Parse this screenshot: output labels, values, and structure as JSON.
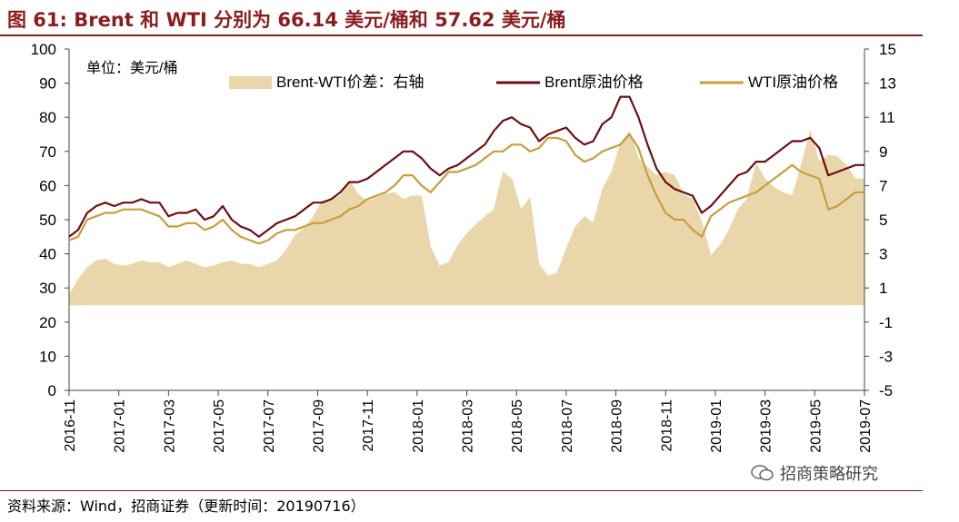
{
  "header": {
    "title": "图 61:  Brent 和 WTI 分别为 66.14 美元/桶和 57.62 美元/桶"
  },
  "footer": {
    "source": "资料来源：Wind，招商证券（更新时间：20190716）"
  },
  "watermark": {
    "text": "招商策略研究"
  },
  "colors": {
    "spread": "#e9d7ab",
    "brent": "#6b0f14",
    "wti": "#c79e3c",
    "title": "#8a1d1d"
  },
  "chart_data": {
    "type": "line",
    "unit_label": "单位：美元/桶",
    "left_axis": {
      "min": 0,
      "max": 100,
      "ticks": [
        0,
        10,
        20,
        30,
        40,
        50,
        60,
        70,
        80,
        90,
        100
      ]
    },
    "right_axis": {
      "min": -5,
      "max": 15,
      "ticks": [
        -5,
        -3,
        -1,
        1,
        3,
        5,
        7,
        9,
        11,
        13,
        15
      ]
    },
    "x_ticks": [
      "2016-11",
      "2017-01",
      "2017-03",
      "2017-05",
      "2017-07",
      "2017-09",
      "2017-11",
      "2018-01",
      "2018-03",
      "2018-05",
      "2018-07",
      "2018-09",
      "2018-11",
      "2019-01",
      "2019-03",
      "2019-05",
      "2019-07"
    ],
    "legend": [
      "Brent-WTI价差：右轴",
      "Brent原油价格",
      "WTI原油价格"
    ],
    "series": [
      {
        "name": "Brent原油价格",
        "axis": "left",
        "type": "line",
        "values": [
          45,
          47,
          52,
          54,
          55,
          54,
          55,
          55,
          56,
          55,
          55,
          51,
          52,
          52,
          53,
          50,
          51,
          54,
          50,
          48,
          47,
          45,
          47,
          49,
          50,
          51,
          53,
          55,
          55,
          56,
          58,
          61,
          61,
          62,
          64,
          66,
          68,
          70,
          70,
          68,
          65,
          63,
          65,
          66,
          68,
          70,
          72,
          76,
          79,
          80,
          78,
          77,
          73,
          75,
          76,
          77,
          74,
          72,
          73,
          78,
          80,
          86,
          86,
          80,
          72,
          65,
          61,
          59,
          58,
          57,
          52,
          54,
          57,
          60,
          63,
          64,
          67,
          67,
          69,
          71,
          73,
          73,
          74,
          71,
          63,
          64,
          65,
          66,
          66
        ]
      },
      {
        "name": "WTI原油价格",
        "axis": "left",
        "type": "line",
        "values": [
          44,
          45,
          50,
          51,
          52,
          52,
          53,
          53,
          53,
          52,
          51,
          48,
          48,
          49,
          49,
          47,
          48,
          50,
          47,
          45,
          44,
          43,
          44,
          46,
          47,
          47,
          48,
          49,
          49,
          50,
          51,
          53,
          54,
          56,
          57,
          58,
          60,
          63,
          63,
          60,
          58,
          61,
          64,
          64,
          65,
          66,
          68,
          70,
          70,
          72,
          72,
          70,
          71,
          74,
          74,
          73,
          69,
          67,
          68,
          70,
          71,
          72,
          75,
          71,
          63,
          57,
          52,
          50,
          50,
          47,
          45,
          51,
          53,
          55,
          56,
          57,
          58,
          60,
          62,
          64,
          66,
          64,
          63,
          62,
          53,
          54,
          56,
          58,
          58
        ]
      },
      {
        "name": "Brent-WTI价差：右轴",
        "axis": "right",
        "type": "area",
        "values": [
          0.6,
          1.5,
          2.2,
          2.6,
          2.7,
          2.4,
          2.3,
          2.4,
          2.6,
          2.5,
          2.5,
          2.2,
          2.4,
          2.6,
          2.4,
          2.2,
          2.3,
          2.5,
          2.6,
          2.4,
          2.4,
          2.2,
          2.4,
          2.6,
          3.2,
          4.1,
          4.5,
          5.2,
          6.1,
          6.2,
          6.4,
          7.3,
          6.5,
          6.1,
          6.3,
          6.5,
          6.6,
          6.2,
          6.4,
          6.4,
          3.4,
          2.3,
          2.5,
          3.5,
          4.2,
          4.7,
          5.2,
          5.6,
          7.8,
          7.4,
          5.6,
          6.3,
          2.4,
          1.7,
          1.9,
          3.3,
          4.6,
          5.2,
          4.8,
          6.8,
          7.8,
          9.5,
          10.2,
          8.6,
          8.1,
          7.6,
          7.8,
          7.6,
          6.5,
          6.2,
          4.9,
          2.9,
          3.5,
          4.4,
          5.6,
          6.2,
          8.3,
          7.4,
          6.9,
          6.6,
          6.4,
          8.2,
          10.2,
          8.4,
          8.8,
          8.7,
          8.2,
          7.4,
          7.4
        ]
      }
    ]
  }
}
